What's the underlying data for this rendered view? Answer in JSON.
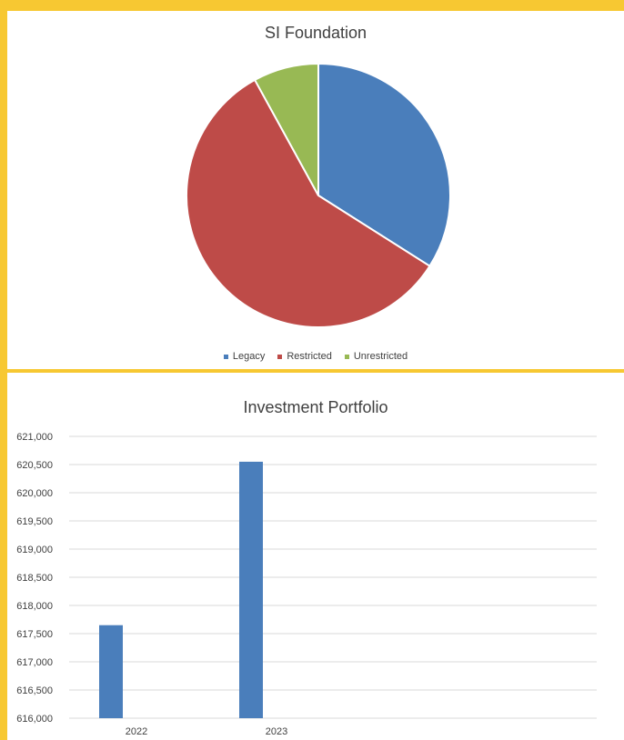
{
  "chart_data": [
    {
      "type": "pie",
      "title": "SI Foundation",
      "slices": [
        {
          "label": "Legacy",
          "value": 34,
          "color": "#4a7ebb"
        },
        {
          "label": "Restricted",
          "value": 58,
          "color": "#be4b48"
        },
        {
          "label": "Unrestricted",
          "value": 8,
          "color": "#98b954"
        }
      ],
      "legend": "bottom"
    },
    {
      "type": "bar",
      "title": "Investment Portfolio",
      "categories": [
        "2022",
        "2023"
      ],
      "values": [
        617650,
        620550
      ],
      "ylim": [
        616000,
        621000
      ],
      "yticks": [
        "616,000",
        "616,500",
        "617,000",
        "617,500",
        "618,000",
        "618,500",
        "619,000",
        "619,500",
        "620,000",
        "620,500",
        "621,000"
      ],
      "grid": true,
      "color": "#4a7ebb"
    }
  ]
}
